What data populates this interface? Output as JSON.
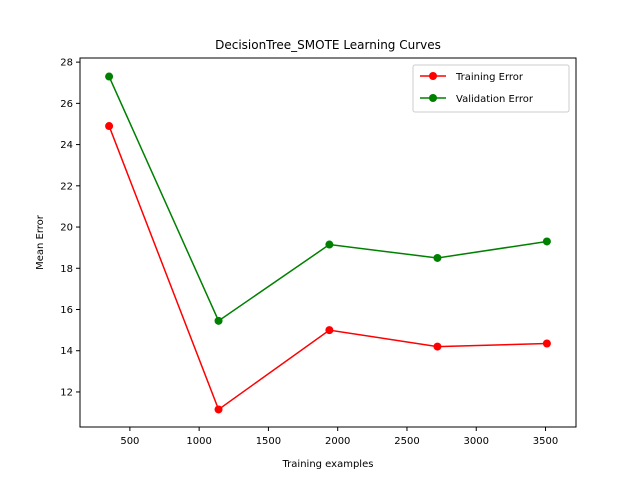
{
  "chart_data": {
    "type": "line",
    "title": "DecisionTree_SMOTE Learning Curves",
    "xlabel": "Training examples",
    "ylabel": "Mean Error",
    "xlim": [
      140,
      3720
    ],
    "ylim": [
      10.3,
      28.2
    ],
    "x_ticks": [
      500,
      1000,
      1500,
      2000,
      2500,
      3000,
      3500
    ],
    "y_ticks": [
      12,
      14,
      16,
      18,
      20,
      22,
      24,
      26,
      28
    ],
    "grid": false,
    "legend_position": "top-right",
    "x": [
      350,
      1140,
      1940,
      2720,
      3510
    ],
    "series": [
      {
        "name": "Training Error",
        "color": "#ff0000",
        "marker": "circle",
        "values": [
          24.9,
          11.15,
          15.0,
          14.2,
          14.35
        ]
      },
      {
        "name": "Validation Error",
        "color": "#008000",
        "marker": "circle",
        "values": [
          27.3,
          15.45,
          19.15,
          18.5,
          19.3
        ]
      }
    ]
  }
}
